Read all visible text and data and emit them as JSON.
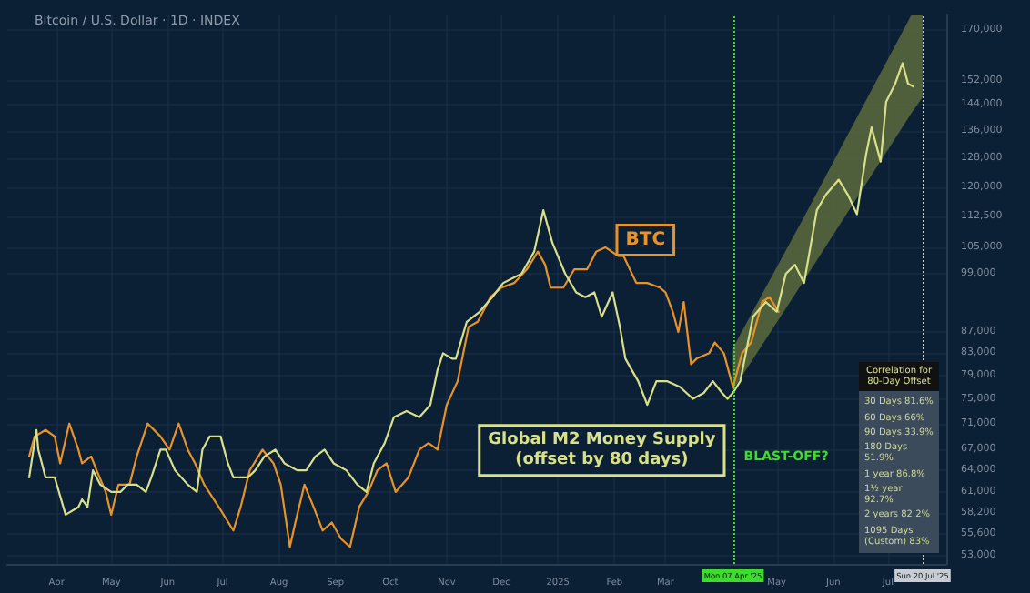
{
  "chart_data": {
    "type": "line",
    "title": "Bitcoin / U.S. Dollar · 1D · INDEX",
    "log": true,
    "grid": true,
    "legend": false,
    "line_style": "solid",
    "xlim": [
      "2024-03-05",
      "2025-08-02"
    ],
    "xticks": [
      {
        "value": "2024-04-01",
        "label": "Apr"
      },
      {
        "value": "2024-05-01",
        "label": "May"
      },
      {
        "value": "2024-06-01",
        "label": "Jun"
      },
      {
        "value": "2024-07-01",
        "label": "Jul"
      },
      {
        "value": "2024-08-01",
        "label": "Aug"
      },
      {
        "value": "2024-09-01",
        "label": "Sep"
      },
      {
        "value": "2024-10-01",
        "label": "Oct"
      },
      {
        "value": "2024-11-01",
        "label": "Nov"
      },
      {
        "value": "2024-12-01",
        "label": "Dec"
      },
      {
        "value": "2025-01-01",
        "label": "2025"
      },
      {
        "value": "2025-02-01",
        "label": "Feb"
      },
      {
        "value": "2025-03-01",
        "label": "Mar"
      },
      {
        "value": "2025-05-01",
        "label": "May"
      },
      {
        "value": "2025-06-01",
        "label": "Jun"
      },
      {
        "value": "2025-07-01",
        "label": "Jul"
      }
    ],
    "ylim": [
      52000,
      176000
    ],
    "yticks": [
      {
        "value": 53000,
        "label": "53,000"
      },
      {
        "value": 55600,
        "label": "55,600"
      },
      {
        "value": 58200,
        "label": "58,200"
      },
      {
        "value": 61000,
        "label": "61,000"
      },
      {
        "value": 64000,
        "label": "64,000"
      },
      {
        "value": 67000,
        "label": "67,000"
      },
      {
        "value": 71000,
        "label": "71,000"
      },
      {
        "value": 75000,
        "label": "75,000"
      },
      {
        "value": 79000,
        "label": "79,000"
      },
      {
        "value": 83000,
        "label": "83,000"
      },
      {
        "value": 87000,
        "label": "87,000"
      },
      {
        "value": 99000,
        "label": "99,000"
      },
      {
        "value": 105000,
        "label": "105,000"
      },
      {
        "value": 112500,
        "label": "112,500"
      },
      {
        "value": 120000,
        "label": "120,000"
      },
      {
        "value": 128000,
        "label": "128,000"
      },
      {
        "value": 136000,
        "label": "136,000"
      },
      {
        "value": 144000,
        "label": "144,000"
      },
      {
        "value": 152000,
        "label": "152,000"
      },
      {
        "value": 170000,
        "label": "170,000"
      }
    ],
    "series": [
      {
        "type": "area",
        "color": "#56663c",
        "x": [
          "2025-04-07",
          "2025-05-15",
          "2025-07-14",
          "2025-07-20"
        ],
        "values": [
          null,
          null,
          null,
          null
        ],
        "lower": [
          76500,
          97000,
          141500,
          146500
        ],
        "upper": [
          84000,
          111500,
          176000,
          176000
        ]
      },
      {
        "name": "BTC",
        "color": "#e8922a",
        "x": [
          "2024-03-17",
          "2024-03-20",
          "2024-03-26",
          "2024-03-31",
          "2024-04-03",
          "2024-04-08",
          "2024-04-13",
          "2024-04-15",
          "2024-04-20",
          "2024-04-23",
          "2024-04-28",
          "2024-05-01",
          "2024-05-05",
          "2024-05-11",
          "2024-05-15",
          "2024-05-21",
          "2024-05-28",
          "2024-06-02",
          "2024-06-07",
          "2024-06-12",
          "2024-06-16",
          "2024-06-21",
          "2024-06-29",
          "2024-07-07",
          "2024-07-11",
          "2024-07-16",
          "2024-07-23",
          "2024-07-29",
          "2024-08-02",
          "2024-08-07",
          "2024-08-10",
          "2024-08-15",
          "2024-08-20",
          "2024-08-25",
          "2024-08-30",
          "2024-09-04",
          "2024-09-09",
          "2024-09-14",
          "2024-09-19",
          "2024-09-24",
          "2024-09-29",
          "2024-10-04",
          "2024-10-11",
          "2024-10-17",
          "2024-10-22",
          "2024-10-27",
          "2024-11-01",
          "2024-11-07",
          "2024-11-13",
          "2024-11-18",
          "2024-11-25",
          "2024-12-01",
          "2024-12-08",
          "2024-12-15",
          "2024-12-21",
          "2024-12-25",
          "2024-12-28",
          "2025-01-04",
          "2025-01-10",
          "2025-01-17",
          "2025-01-22",
          "2025-01-27",
          "2025-02-03",
          "2025-02-06",
          "2025-02-13",
          "2025-02-19",
          "2025-02-26",
          "2025-03-01",
          "2025-03-05",
          "2025-03-08",
          "2025-03-11",
          "2025-03-15",
          "2025-03-18",
          "2025-03-25",
          "2025-03-28",
          "2025-04-02",
          "2025-04-07",
          "2025-04-12",
          "2025-04-17",
          "2025-04-23",
          "2025-04-27",
          "2025-05-02"
        ],
        "values": [
          66000,
          69000,
          70000,
          69000,
          65000,
          71000,
          67000,
          65000,
          66000,
          64000,
          61000,
          58000,
          62000,
          62000,
          66000,
          71000,
          69000,
          67000,
          71000,
          67000,
          65000,
          62000,
          59000,
          56000,
          59000,
          64000,
          67000,
          65000,
          62000,
          54000,
          57000,
          62000,
          59000,
          56000,
          57000,
          55000,
          54000,
          59000,
          61000,
          64000,
          65000,
          61000,
          63000,
          67000,
          68000,
          67000,
          74000,
          78000,
          88000,
          89000,
          94000,
          96000,
          97000,
          100000,
          104000,
          101000,
          96000,
          96000,
          100000,
          100000,
          104000,
          105000,
          103000,
          103000,
          97000,
          97000,
          96000,
          95000,
          91000,
          87000,
          93000,
          81000,
          82000,
          83000,
          85000,
          83000,
          77000,
          83000,
          85000,
          93000,
          94000,
          91000
        ]
      },
      {
        "name": "Global M2 Money Supply\n(offset by 80 days)",
        "color": "#d9e08a",
        "x": [
          "2024-03-17",
          "2024-03-21",
          "2024-03-22",
          "2024-03-26",
          "2024-03-31",
          "2024-04-06",
          "2024-04-13",
          "2024-04-15",
          "2024-04-18",
          "2024-04-21",
          "2024-04-25",
          "2024-05-01",
          "2024-05-06",
          "2024-05-10",
          "2024-05-15",
          "2024-05-20",
          "2024-05-23",
          "2024-05-28",
          "2024-05-31",
          "2024-06-05",
          "2024-06-12",
          "2024-06-17",
          "2024-06-20",
          "2024-06-24",
          "2024-06-30",
          "2024-07-04",
          "2024-07-07",
          "2024-07-15",
          "2024-07-19",
          "2024-07-24",
          "2024-07-30",
          "2024-08-04",
          "2024-08-11",
          "2024-08-16",
          "2024-08-21",
          "2024-08-26",
          "2024-08-31",
          "2024-09-07",
          "2024-09-13",
          "2024-09-18",
          "2024-09-22",
          "2024-09-28",
          "2024-10-03",
          "2024-10-10",
          "2024-10-17",
          "2024-10-23",
          "2024-10-27",
          "2024-10-30",
          "2024-11-04",
          "2024-11-06",
          "2024-11-12",
          "2024-11-19",
          "2024-11-26",
          "2024-12-02",
          "2024-12-12",
          "2024-12-19",
          "2024-12-24",
          "2024-12-29",
          "2025-01-05",
          "2025-01-11",
          "2025-01-16",
          "2025-01-21",
          "2025-01-25",
          "2025-01-31",
          "2025-02-04",
          "2025-02-07",
          "2025-02-14",
          "2025-02-19",
          "2025-02-24",
          "2025-03-02",
          "2025-03-09",
          "2025-03-16",
          "2025-03-22",
          "2025-03-27",
          "2025-04-01",
          "2025-04-04",
          "2025-04-07",
          "2025-04-11",
          "2025-04-18",
          "2025-04-25",
          "2025-05-01",
          "2025-05-06",
          "2025-05-11",
          "2025-05-16",
          "2025-05-23",
          "2025-05-28",
          "2025-06-04",
          "2025-06-09",
          "2025-06-14",
          "2025-06-19",
          "2025-06-22",
          "2025-06-27",
          "2025-06-30",
          "2025-07-05",
          "2025-07-09",
          "2025-07-12",
          "2025-07-15"
        ],
        "values": [
          63000,
          70000,
          67000,
          63000,
          63000,
          58000,
          59000,
          60000,
          59000,
          64000,
          62000,
          61000,
          61000,
          62000,
          62000,
          61000,
          63000,
          67000,
          67000,
          64000,
          62000,
          61000,
          67000,
          69000,
          69000,
          65000,
          63000,
          63000,
          64000,
          66000,
          67000,
          65000,
          64000,
          64000,
          66000,
          67000,
          65000,
          64000,
          62000,
          61000,
          65000,
          68000,
          72000,
          73000,
          72000,
          74000,
          80000,
          83000,
          82000,
          82000,
          89000,
          91000,
          94000,
          97000,
          99000,
          104000,
          114000,
          106000,
          99000,
          95000,
          94000,
          95000,
          90000,
          95000,
          88000,
          82000,
          78000,
          74000,
          78000,
          78000,
          77000,
          75000,
          76000,
          78000,
          76000,
          75000,
          76000,
          78000,
          90000,
          93000,
          91000,
          99000,
          101000,
          97000,
          114000,
          118000,
          122000,
          118000,
          113000,
          129000,
          137000,
          127000,
          145000,
          151000,
          158000,
          151000,
          150000
        ]
      }
    ],
    "ref_lines": [
      {
        "axis": "x",
        "value": "2025-04-07",
        "label": "Mon 07 Apr '25",
        "color": "#3ddc2f",
        "line_style": "dotted"
      },
      {
        "axis": "x",
        "value": "2025-07-20",
        "label": "Sun 20 Jul '25",
        "color": "#c8ccd4",
        "line_style": "dotted"
      }
    ],
    "annotations": [
      {
        "text": "BLAST-OFF?",
        "x": "2025-04-07",
        "y": 66000
      },
      "Correlation for 80-Day Offset",
      "30 Days 81.6%",
      "60 Days 66%",
      "90 Days 33.9%",
      "180 Days 51.9%",
      "1 year 86.8%",
      "1½ year 92.7%",
      "2 years 82.2%",
      "1095 Days (Custom) 83%"
    ]
  }
}
